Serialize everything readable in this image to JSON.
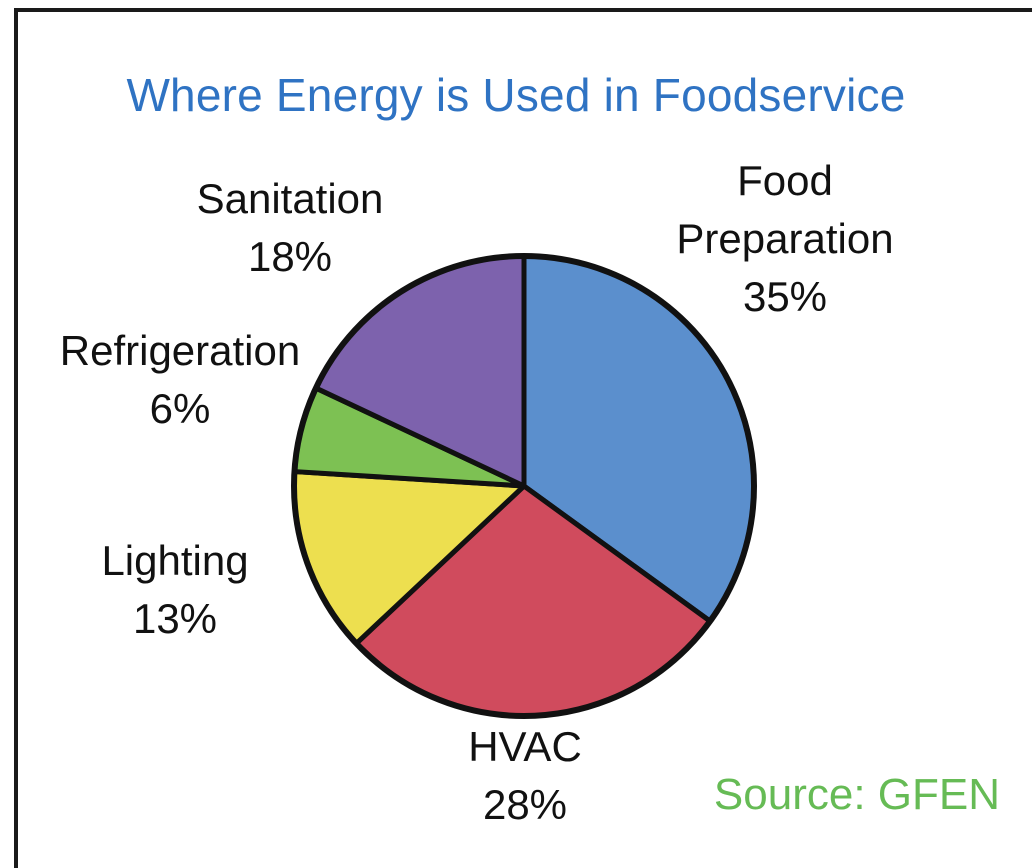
{
  "chart_data": {
    "type": "pie",
    "title": "Where Energy is Used in Foodservice",
    "source": "Source: GFEN",
    "slices": [
      {
        "label_lines": [
          "Food",
          "Preparation"
        ],
        "percent_label": "35%",
        "value": 35,
        "color": "#5b8fcd"
      },
      {
        "label_lines": [
          "HVAC"
        ],
        "percent_label": "28%",
        "value": 28,
        "color": "#d04b5d"
      },
      {
        "label_lines": [
          "Lighting"
        ],
        "percent_label": "13%",
        "value": 13,
        "color": "#eddf4f"
      },
      {
        "label_lines": [
          "Refrigeration"
        ],
        "percent_label": "6%",
        "value": 6,
        "color": "#7dc153"
      },
      {
        "label_lines": [
          "Sanitation"
        ],
        "percent_label": "18%",
        "value": 18,
        "color": "#7d62ad"
      }
    ]
  }
}
